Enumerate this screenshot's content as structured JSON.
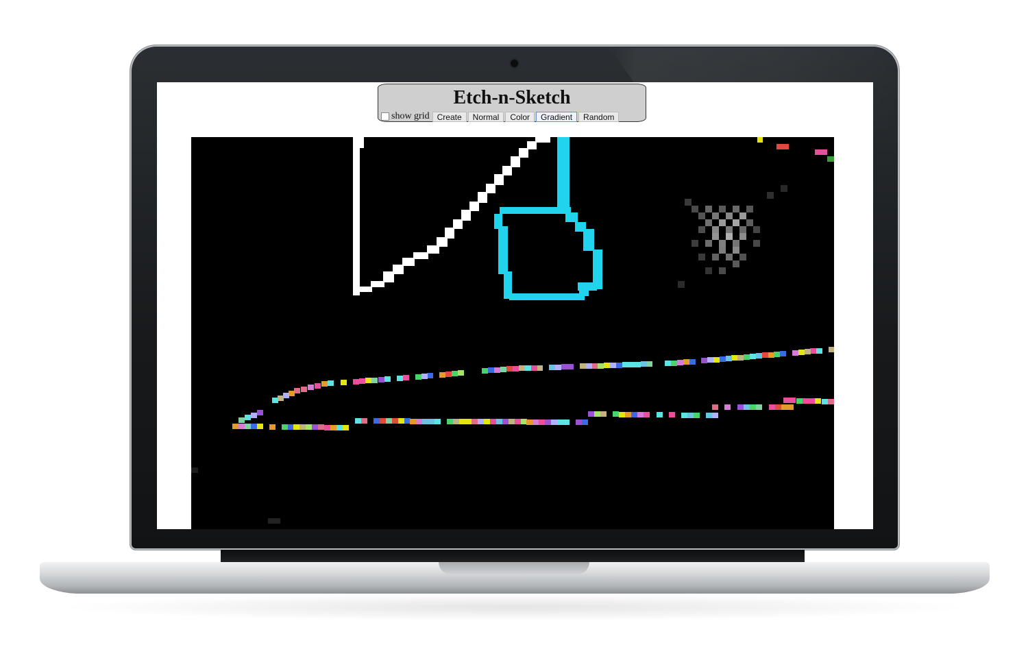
{
  "app": {
    "title": "Etch-n-Sketch",
    "show_grid_label": "show grid",
    "show_grid_checked": false,
    "buttons": [
      {
        "label": "Create",
        "active": false
      },
      {
        "label": "Normal",
        "active": false
      },
      {
        "label": "Color",
        "active": false
      },
      {
        "label": "Gradient",
        "active": true
      },
      {
        "label": "Random",
        "active": false
      }
    ]
  },
  "sketch": {
    "background": "#000000",
    "stroke_colors": {
      "white": "#ffffff",
      "cyan": "#22d3ee"
    }
  }
}
